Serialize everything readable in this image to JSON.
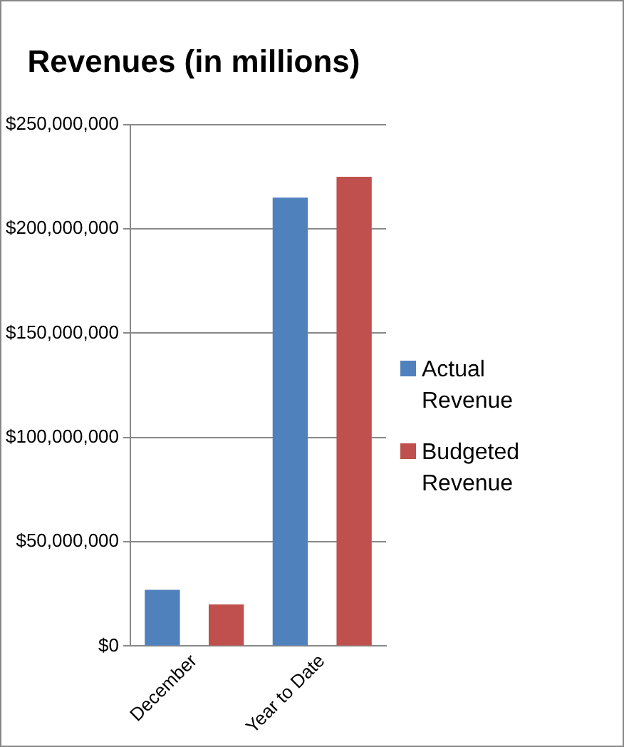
{
  "chart_data": {
    "type": "bar",
    "title": "Revenues (in millions)",
    "categories": [
      "December",
      "Year to Date"
    ],
    "series": [
      {
        "name": "Actual Revenue",
        "color": "#4f81bd",
        "values": [
          27000000,
          215000000
        ]
      },
      {
        "name": "Budgeted Revenue",
        "color": "#c0504d",
        "values": [
          20000000,
          225000000
        ]
      }
    ],
    "ylim": [
      0,
      250000000
    ],
    "yticks": [
      {
        "value": 0,
        "label": "$0"
      },
      {
        "value": 50000000,
        "label": "$50,000,000"
      },
      {
        "value": 100000000,
        "label": "$100,000,000"
      },
      {
        "value": 150000000,
        "label": "$150,000,000"
      },
      {
        "value": 200000000,
        "label": "$200,000,000"
      },
      {
        "value": 250000000,
        "label": "$250,000,000"
      }
    ],
    "grid": "y",
    "legend": "right"
  }
}
